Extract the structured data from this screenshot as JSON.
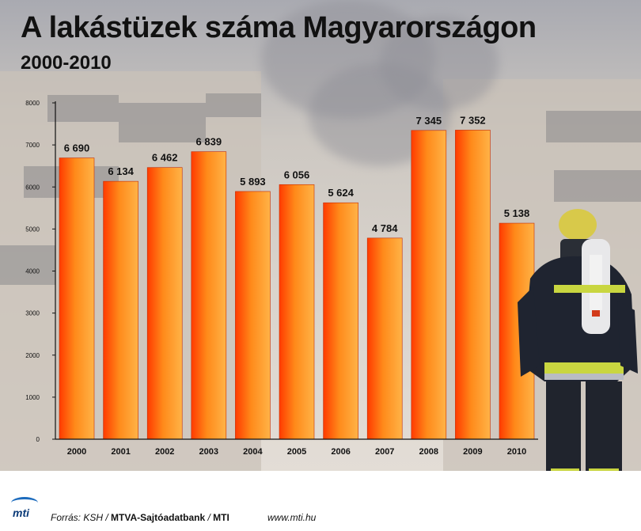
{
  "title": "A lakástüzek száma Magyarországon",
  "subtitle": "2000-2010",
  "chart_data": {
    "type": "bar",
    "title": "A lakástüzek száma Magyarországon",
    "subtitle": "2000-2010",
    "categories": [
      "2000",
      "2001",
      "2002",
      "2003",
      "2004",
      "2005",
      "2006",
      "2007",
      "2008",
      "2009",
      "2010"
    ],
    "values": [
      6690,
      6134,
      6462,
      6839,
      5893,
      6056,
      5624,
      4784,
      7345,
      7352,
      5138
    ],
    "value_labels": [
      "6 690",
      "6 134",
      "6 462",
      "6 839",
      "5 893",
      "6 056",
      "5 624",
      "4 784",
      "7 345",
      "7 352",
      "5 138"
    ],
    "yticks": [
      "0",
      "1000",
      "2000",
      "3000",
      "4000",
      "5000",
      "6000",
      "7000",
      "8000"
    ],
    "ylim": [
      0,
      8000
    ],
    "xlabel": "",
    "ylabel": "",
    "grid": false,
    "bar_colors": [
      "#ff3b00",
      "#ff8a1a",
      "#ffb347"
    ]
  },
  "footer": {
    "logo": "mti",
    "source_prefix": "Forrás: KSH /",
    "source_main": "MTVA-Sajtóadatbank",
    "source_sep": " / ",
    "source_end": "MTI",
    "website": "www.mti.hu"
  }
}
